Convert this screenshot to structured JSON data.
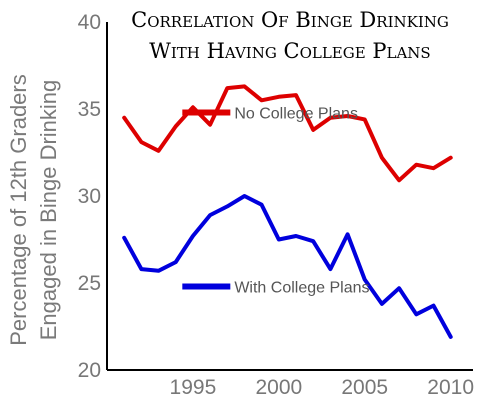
{
  "chart_data": {
    "type": "line",
    "title_lines": [
      "Correlation Of Binge Drinking",
      "With Having College Plans"
    ],
    "ylabel_lines": [
      "Percentage of 12th Graders",
      "Engaged in Binge Drinking"
    ],
    "xlabel": "",
    "x": [
      1991,
      1992,
      1993,
      1994,
      1995,
      1996,
      1997,
      1998,
      1999,
      2000,
      2001,
      2002,
      2003,
      2004,
      2005,
      2006,
      2007,
      2008,
      2009,
      2010
    ],
    "xlim": [
      1990,
      2011.3
    ],
    "ylim": [
      20,
      40
    ],
    "xticks": [
      1995,
      2000,
      2005,
      2010
    ],
    "yticks": [
      20,
      25,
      30,
      35,
      40
    ],
    "grid": false,
    "series": [
      {
        "name": "No College Plans",
        "color": "#dd0000",
        "values": [
          34.5,
          33.1,
          32.6,
          34.0,
          35.1,
          34.1,
          36.2,
          36.3,
          35.5,
          35.7,
          35.8,
          33.8,
          34.5,
          34.6,
          34.4,
          32.2,
          30.9,
          31.8,
          31.6,
          32.2
        ]
      },
      {
        "name": "With College Plans",
        "color": "#0000dd",
        "values": [
          27.6,
          25.8,
          25.7,
          26.2,
          27.7,
          28.9,
          29.4,
          30.0,
          29.5,
          27.5,
          27.7,
          27.4,
          25.8,
          27.8,
          25.2,
          23.8,
          24.7,
          23.2,
          23.7,
          21.9
        ]
      }
    ]
  }
}
